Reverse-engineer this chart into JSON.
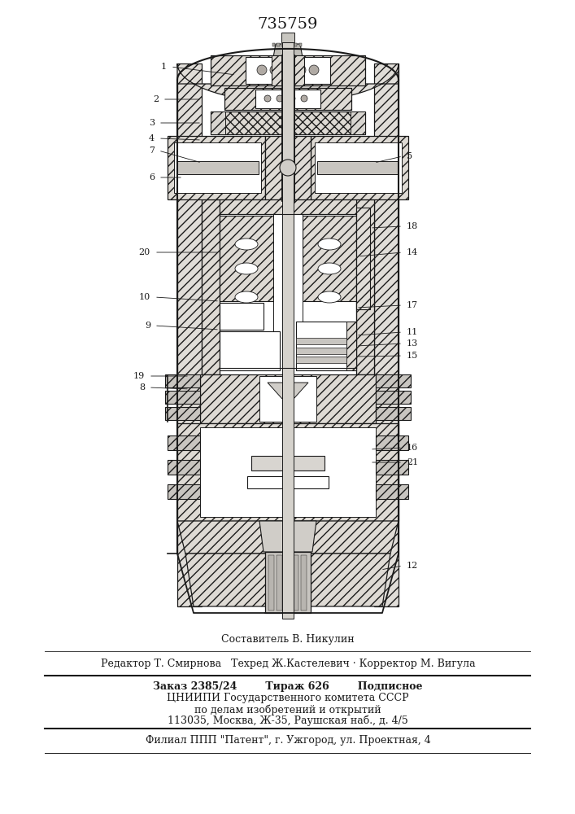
{
  "title": "735759",
  "bg_color": "#f5f4f0",
  "line_color": "#1a1a1a",
  "label_fontsize": 8,
  "footer": {
    "line1": "Составитель В. Никулин",
    "line2": "Редактор Т. Смирнова   Техред Ж.Кастелевич · Корректор М. Вигула",
    "line3": "Заказ 2385/24        Тираж 626        Подписное",
    "line4": "ЦНИИПИ Государственного комитета СССР",
    "line5": "по делам изобретений и открытий",
    "line6": "113035, Москва, Ж-35, Раушская наб., д. 4/5",
    "line7": "Филиал ППП \"Патент\", г. Ужгород, ул. Проектная, 4"
  }
}
